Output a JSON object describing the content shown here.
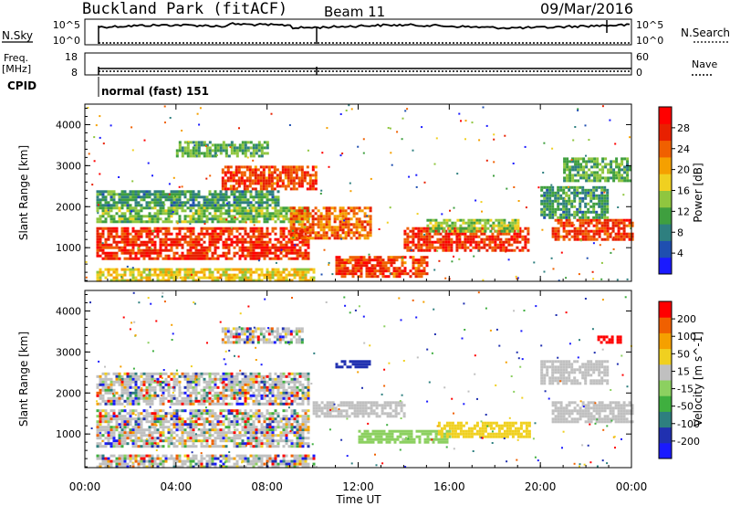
{
  "header": {
    "station": "Buckland Park (fitACF)",
    "beam": "Beam 11",
    "date": "09/Mar/2016"
  },
  "control_panels": {
    "nsky": {
      "label": "N.Sky",
      "left_top": "10^5",
      "left_bottom": "10^0"
    },
    "nsearch": {
      "label": "N.Search",
      "right_top": "10^5",
      "right_bottom": "10^0"
    },
    "freq": {
      "label_line1": "Freq.",
      "label_line2": "[MHz]",
      "left_top": "18",
      "left_bottom": "8"
    },
    "nave": {
      "label": "Nave",
      "right_top": "60",
      "right_bottom": "0"
    },
    "cpid": {
      "label": "CPID",
      "value": "normal (fast) 151"
    }
  },
  "colors": {
    "power_scale": [
      "#1a1aff",
      "#1f4fb0",
      "#2e7f7f",
      "#3f9f3f",
      "#8fc63f",
      "#f0d020",
      "#f5a000",
      "#f06000",
      "#e82000",
      "#ff0000"
    ],
    "velocity_scale": [
      "#1a1aff",
      "#2030b0",
      "#2e7f7f",
      "#3faf3f",
      "#8cd060",
      "#c0c0c0",
      "#f0d020",
      "#f5a000",
      "#f06000",
      "#ff0000"
    ]
  },
  "chart_data": [
    {
      "type": "heatmap",
      "title": "Power",
      "ylabel": "Slant Range [km]",
      "xlabel": "",
      "ylim": [
        180,
        4500
      ],
      "yticks": [
        "1000",
        "2000",
        "3000",
        "4000"
      ],
      "ytick_values": [
        1000,
        2000,
        3000,
        4000
      ],
      "xlim_hours": [
        0,
        24
      ],
      "colorbar": {
        "label": "Power [dB]",
        "range": [
          0,
          32
        ],
        "ticks": [
          "4",
          "8",
          "12",
          "16",
          "20",
          "24",
          "28"
        ],
        "tick_values": [
          4,
          8,
          12,
          16,
          20,
          24,
          28
        ]
      },
      "bands": [
        {
          "t0": 0.5,
          "t1": 9.8,
          "r0": 700,
          "r1": 1500,
          "level": 27
        },
        {
          "t0": 0.5,
          "t1": 9.8,
          "r0": 1600,
          "r1": 2000,
          "level": 13
        },
        {
          "t0": 0.5,
          "t1": 8.5,
          "r0": 2000,
          "r1": 2400,
          "level": 10
        },
        {
          "t0": 6.0,
          "t1": 10.2,
          "r0": 2400,
          "r1": 3000,
          "level": 26
        },
        {
          "t0": 4.0,
          "t1": 8.0,
          "r0": 3200,
          "r1": 3600,
          "level": 12
        },
        {
          "t0": 0.5,
          "t1": 10.0,
          "r0": 200,
          "r1": 500,
          "level": 18
        },
        {
          "t0": 9.0,
          "t1": 12.5,
          "r0": 1200,
          "r1": 2000,
          "level": 24
        },
        {
          "t0": 11.0,
          "t1": 15.0,
          "r0": 300,
          "r1": 800,
          "level": 26
        },
        {
          "t0": 14.0,
          "t1": 19.5,
          "r0": 900,
          "r1": 1500,
          "level": 27
        },
        {
          "t0": 15.0,
          "t1": 19.0,
          "r0": 1400,
          "r1": 1700,
          "level": 14
        },
        {
          "t0": 20.5,
          "t1": 24.0,
          "r0": 1200,
          "r1": 1700,
          "level": 26
        },
        {
          "t0": 20.0,
          "t1": 23.0,
          "r0": 1700,
          "r1": 2500,
          "level": 10
        },
        {
          "t0": 21.0,
          "t1": 24.0,
          "r0": 2600,
          "r1": 3200,
          "level": 12
        }
      ]
    },
    {
      "type": "heatmap",
      "title": "Velocity",
      "ylabel": "Slant Range [km]",
      "xlabel": "Time UT",
      "ylim": [
        180,
        4500
      ],
      "yticks": [
        "1000",
        "2000",
        "3000",
        "4000"
      ],
      "ytick_values": [
        1000,
        2000,
        3000,
        4000
      ],
      "xlim_hours": [
        0,
        24
      ],
      "xticks": [
        "00:00",
        "04:00",
        "08:00",
        "12:00",
        "16:00",
        "20:00",
        "00:00"
      ],
      "xtick_values": [
        0,
        4,
        8,
        12,
        16,
        20,
        24
      ],
      "colorbar": {
        "label": "Velocity [m s^-1]",
        "ticks": [
          "200",
          "100",
          "50",
          "15",
          "-15",
          "-50",
          "-100",
          "-200"
        ]
      },
      "bands": [
        {
          "t0": 0.5,
          "t1": 9.8,
          "r0": 700,
          "r1": 1600,
          "level": 5,
          "mixed": true
        },
        {
          "t0": 0.5,
          "t1": 9.8,
          "r0": 1700,
          "r1": 2500,
          "level": 5,
          "mixed": true
        },
        {
          "t0": 6.0,
          "t1": 9.5,
          "r0": 3200,
          "r1": 3600,
          "level": 5,
          "mixed": true
        },
        {
          "t0": 0.5,
          "t1": 10.0,
          "r0": 200,
          "r1": 500,
          "level": 5,
          "mixed": true
        },
        {
          "t0": 10.0,
          "t1": 14.0,
          "r0": 1400,
          "r1": 1800,
          "level": 5
        },
        {
          "t0": 12.0,
          "t1": 16.0,
          "r0": 800,
          "r1": 1100,
          "level": 4
        },
        {
          "t0": 15.5,
          "t1": 19.5,
          "r0": 900,
          "r1": 1300,
          "level": 6
        },
        {
          "t0": 11.0,
          "t1": 12.5,
          "r0": 2600,
          "r1": 2800,
          "level": 1
        },
        {
          "t0": 20.5,
          "t1": 24.0,
          "r0": 1300,
          "r1": 1800,
          "level": 5
        },
        {
          "t0": 20.0,
          "t1": 23.0,
          "r0": 2200,
          "r1": 2800,
          "level": 5
        },
        {
          "t0": 22.5,
          "t1": 23.5,
          "r0": 3200,
          "r1": 3400,
          "level": 9
        }
      ]
    }
  ]
}
